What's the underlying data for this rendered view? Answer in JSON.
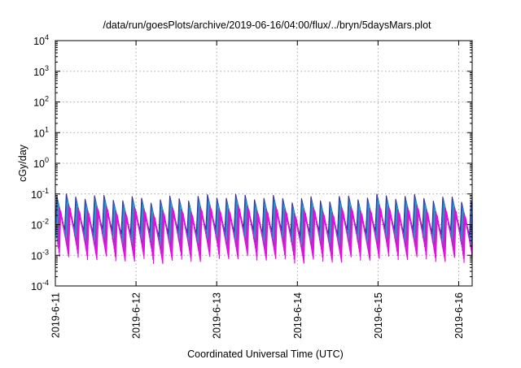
{
  "chart_data": {
    "type": "line",
    "title": "/data/run/goesPlots/archive/2019-06-16/04:00/flux/../bryn/5daysMars.plot",
    "xlabel": "Coordinated Universal Time (UTC)",
    "ylabel": "cGy/day",
    "yscale": "log",
    "ylim": [
      0.0001,
      10000
    ],
    "y_ticks": [
      {
        "value": 0.0001,
        "base": "10",
        "exp": "-4"
      },
      {
        "value": 0.001,
        "base": "10",
        "exp": "-3"
      },
      {
        "value": 0.01,
        "base": "10",
        "exp": "-2"
      },
      {
        "value": 0.1,
        "base": "10",
        "exp": "-1"
      },
      {
        "value": 1,
        "base": "10",
        "exp": "0"
      },
      {
        "value": 10,
        "base": "10",
        "exp": "1"
      },
      {
        "value": 100,
        "base": "10",
        "exp": "2"
      },
      {
        "value": 1000,
        "base": "10",
        "exp": "3"
      },
      {
        "value": 10000,
        "base": "10",
        "exp": "4"
      }
    ],
    "xlim": [
      "2019-06-11T00:00",
      "2019-06-16T04:00"
    ],
    "x_ticks": [
      "2019-6-11",
      "2019-6-12",
      "2019-6-13",
      "2019-6-14",
      "2019-6-15",
      "2019-6-16"
    ],
    "grid": true,
    "legend": "none",
    "pattern": {
      "description": "sawtooth, peak then exponential decay",
      "period_hours": 2.8,
      "peak_range": [
        0.025,
        0.08
      ],
      "trough_range": [
        0.0008,
        0.006
      ]
    },
    "series": [
      {
        "color": "#3a2a8c",
        "peak": 0.075,
        "trough": 0.006
      },
      {
        "color": "#2b5fc0",
        "peak": 0.06,
        "trough": 0.004
      },
      {
        "color": "#1e90d0",
        "peak": 0.048,
        "trough": 0.0032
      },
      {
        "color": "#19b0c8",
        "peak": 0.04,
        "trough": 0.0026
      },
      {
        "color": "#8a3aa8",
        "peak": 0.034,
        "trough": 0.002
      },
      {
        "color": "#b52cc0",
        "peak": 0.03,
        "trough": 0.0015
      },
      {
        "color": "#d81ad8",
        "peak": 0.027,
        "trough": 0.0011
      },
      {
        "color": "#f000f0",
        "peak": 0.025,
        "trough": 0.0008
      }
    ]
  }
}
